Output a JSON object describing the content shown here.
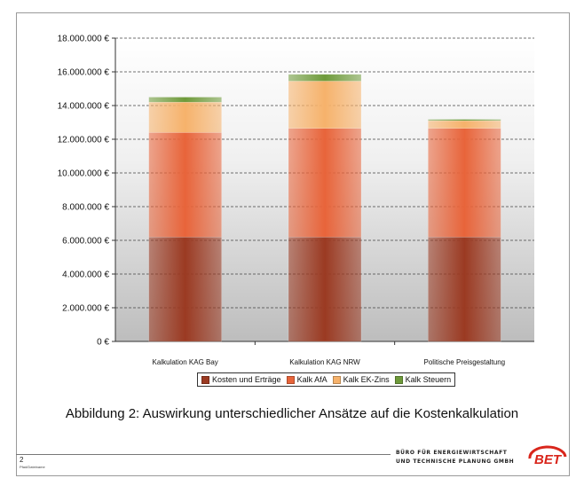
{
  "chart_data": {
    "type": "bar",
    "stacked": true,
    "categories": [
      "Kalkulation KAG Bay",
      "Kalkulation KAG NRW",
      "Politische Preisgestaltung"
    ],
    "series": [
      {
        "name": "Kosten und Erträge",
        "values": [
          6200000,
          6200000,
          6200000
        ],
        "color": "#9b3a22"
      },
      {
        "name": "Kalk AfA",
        "values": [
          6200000,
          6450000,
          6450000
        ],
        "color": "#e8643a"
      },
      {
        "name": "Kalk EK-Zins",
        "values": [
          1800000,
          2800000,
          450000
        ],
        "color": "#f6b26b"
      },
      {
        "name": "Kalk Steuern",
        "values": [
          300000,
          400000,
          80000
        ],
        "color": "#6e9a3a"
      }
    ],
    "ylim": [
      0,
      18000000
    ],
    "yticks": [
      0,
      2000000,
      4000000,
      6000000,
      8000000,
      10000000,
      12000000,
      14000000,
      16000000,
      18000000
    ],
    "ytick_labels": [
      "0 €",
      "2.000.000 €",
      "4.000.000 €",
      "6.000.000 €",
      "8.000.000 €",
      "10.000.000 €",
      "12.000.000 €",
      "14.000.000 €",
      "16.000.000 €",
      "18.000.000 €"
    ],
    "grid": true,
    "legend_position": "bottom"
  },
  "caption": "Abbildung 2: Auswirkung unterschiedlicher Ansätze auf die Kostenkalkulation",
  "footer": {
    "page_number": "2",
    "file_name": "Pfad/Dateiname",
    "company_line1": "BÜRO FÜR ENERGIEWIRTSCHAFT",
    "company_line2": "UND TECHNISCHE PLANUNG GMBH",
    "logo_text": "BET"
  }
}
